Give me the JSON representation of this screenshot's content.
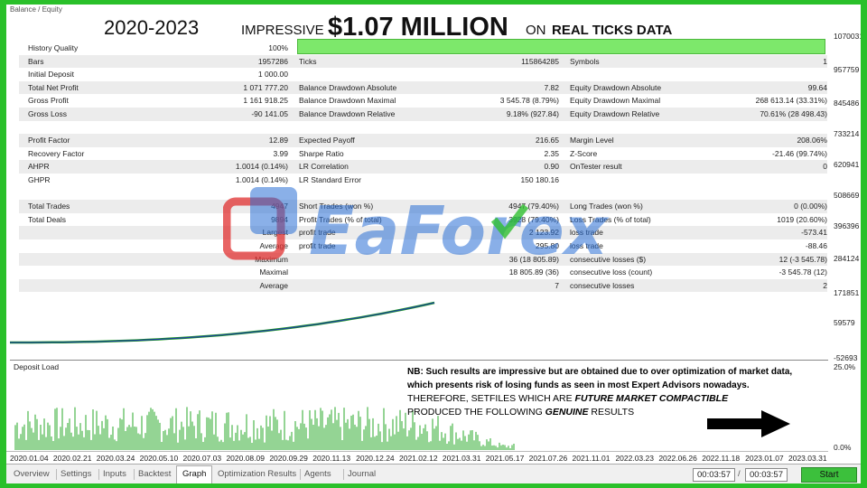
{
  "window": {
    "tiny_title": "Balance / Equity"
  },
  "headline": {
    "years": "2020-2023",
    "impressive": "IMPRESSIVE",
    "amount": "$1.07 MILLION",
    "on": "ON",
    "real": "REAL TICKS DATA"
  },
  "stats": {
    "rows": [
      {
        "l1": "History Quality",
        "v1": "100%",
        "l2": "",
        "v2": "",
        "l3": "",
        "v3": ""
      },
      {
        "l1": "Bars",
        "v1": "1957286",
        "l2": "Ticks",
        "v2": "115864285",
        "l3": "Symbols",
        "v3": "1"
      },
      {
        "l1": "Initial Deposit",
        "v1": "1 000.00",
        "l2": "",
        "v2": "",
        "l3": "",
        "v3": ""
      },
      {
        "l1": "Total Net Profit",
        "v1": "1 071 777.20",
        "l2": "Balance Drawdown Absolute",
        "v2": "7.82",
        "l3": "Equity Drawdown Absolute",
        "v3": "99.64"
      },
      {
        "l1": "Gross Profit",
        "v1": "1 161 918.25",
        "l2": "Balance Drawdown Maximal",
        "v2": "3 545.78 (8.79%)",
        "l3": "Equity Drawdown Maximal",
        "v3": "268 613.14 (33.31%)"
      },
      {
        "l1": "Gross Loss",
        "v1": "-90 141.05",
        "l2": "Balance Drawdown Relative",
        "v2": "9.18% (927.84)",
        "l3": "Equity Drawdown Relative",
        "v3": "70.61% (28 498.43)"
      },
      {
        "l1": "",
        "v1": "",
        "l2": "",
        "v2": "",
        "l3": "",
        "v3": ""
      },
      {
        "l1": "Profit Factor",
        "v1": "12.89",
        "l2": "Expected Payoff",
        "v2": "216.65",
        "l3": "Margin Level",
        "v3": "208.06%"
      },
      {
        "l1": "Recovery Factor",
        "v1": "3.99",
        "l2": "Sharpe Ratio",
        "v2": "2.35",
        "l3": "Z-Score",
        "v3": "-21.46 (99.74%)"
      },
      {
        "l1": "AHPR",
        "v1": "1.0014 (0.14%)",
        "l2": "LR Correlation",
        "v2": "0.90",
        "l3": "OnTester result",
        "v3": "0"
      },
      {
        "l1": "GHPR",
        "v1": "1.0014 (0.14%)",
        "l2": "LR Standard Error",
        "v2": "150 180.16",
        "l3": "",
        "v3": ""
      },
      {
        "l1": "",
        "v1": "",
        "l2": "",
        "v2": "",
        "l3": "",
        "v3": ""
      },
      {
        "l1": "Total Trades",
        "v1": "4947",
        "l2": "Short Trades (won %)",
        "v2": "4947 (79.40%)",
        "l3": "Long Trades (won %)",
        "v3": "0 (0.00%)"
      },
      {
        "l1": "Total Deals",
        "v1": "9894",
        "l2": "Profit Trades (% of total)",
        "v2": "3928 (79.40%)",
        "l3": "Loss Trades (% of total)",
        "v3": "1019 (20.60%)"
      },
      {
        "l1": "",
        "v1": "Largest",
        "l2": "profit trade",
        "v2": "2 123.92",
        "l3": "loss trade",
        "v3": "-573.41"
      },
      {
        "l1": "",
        "v1": "Average",
        "l2": "profit trade",
        "v2": "295.80",
        "l3": "loss trade",
        "v3": "-88.46"
      },
      {
        "l1": "",
        "v1": "Maximum",
        "l2": "",
        "v2": "36 (18 805.89)",
        "l3": "consecutive losses ($)",
        "v3": "12 (-3 545.78)"
      },
      {
        "l1": "",
        "v1": "Maximal",
        "l2": "",
        "v2": "18 805.89 (36)",
        "l3": "consecutive loss (count)",
        "v3": "-3 545.78 (12)"
      },
      {
        "l1": "",
        "v1": "Average",
        "l2": "",
        "v2": "7",
        "l3": "consecutive losses",
        "v3": "2"
      }
    ]
  },
  "right_axis": [
    "1070031",
    "957759",
    "845486",
    "733214",
    "620941",
    "508669",
    "396396",
    "284124",
    "171851",
    "59579",
    "-52693",
    "25.0%",
    "0.0%"
  ],
  "deposit_load_label": "Deposit Load",
  "note": {
    "nb": "NB: Such results are impressive but are obtained due to over optimization of market data, which presents risk of losing funds as seen in most Expert Advisors nowadays.",
    "line1_a": "THEREFORE, SETFILES WHICH ARE ",
    "line1_b": "FUTURE MARKET COMPACTIBLE",
    "line2_a": "PRODUCED THE FOLLOWING ",
    "line2_b": "GENUINE",
    "line2_c": " RESULTS"
  },
  "dates": [
    "2020.01.04",
    "2020.02.21",
    "2020.03.24",
    "2020.05.10",
    "2020.07.03",
    "2020.08.09",
    "2020.09.29",
    "2020.11.13",
    "2020.12.24",
    "2021.02.12",
    "2021.03.31",
    "2021.05.17",
    "2021.07.26",
    "2021.11.01",
    "2022.03.23",
    "2022.06.26",
    "2022.11.18",
    "2023.01.07",
    "2023.03.31"
  ],
  "tabs": [
    "Overview",
    "Settings",
    "Inputs",
    "Backtest",
    "Graph",
    "Optimization Results",
    "Agents",
    "Journal"
  ],
  "active_tab": "Graph",
  "timer1": "00:03:57",
  "timer_sep": "/",
  "timer2": "00:03:57",
  "start_label": "Start",
  "watermark": "EaForex",
  "colors": {
    "frame_green": "#2ac02a",
    "balance_line": "#1e3fa0",
    "equity_line": "#1a9a1a",
    "bar_green": "#7de86b"
  }
}
